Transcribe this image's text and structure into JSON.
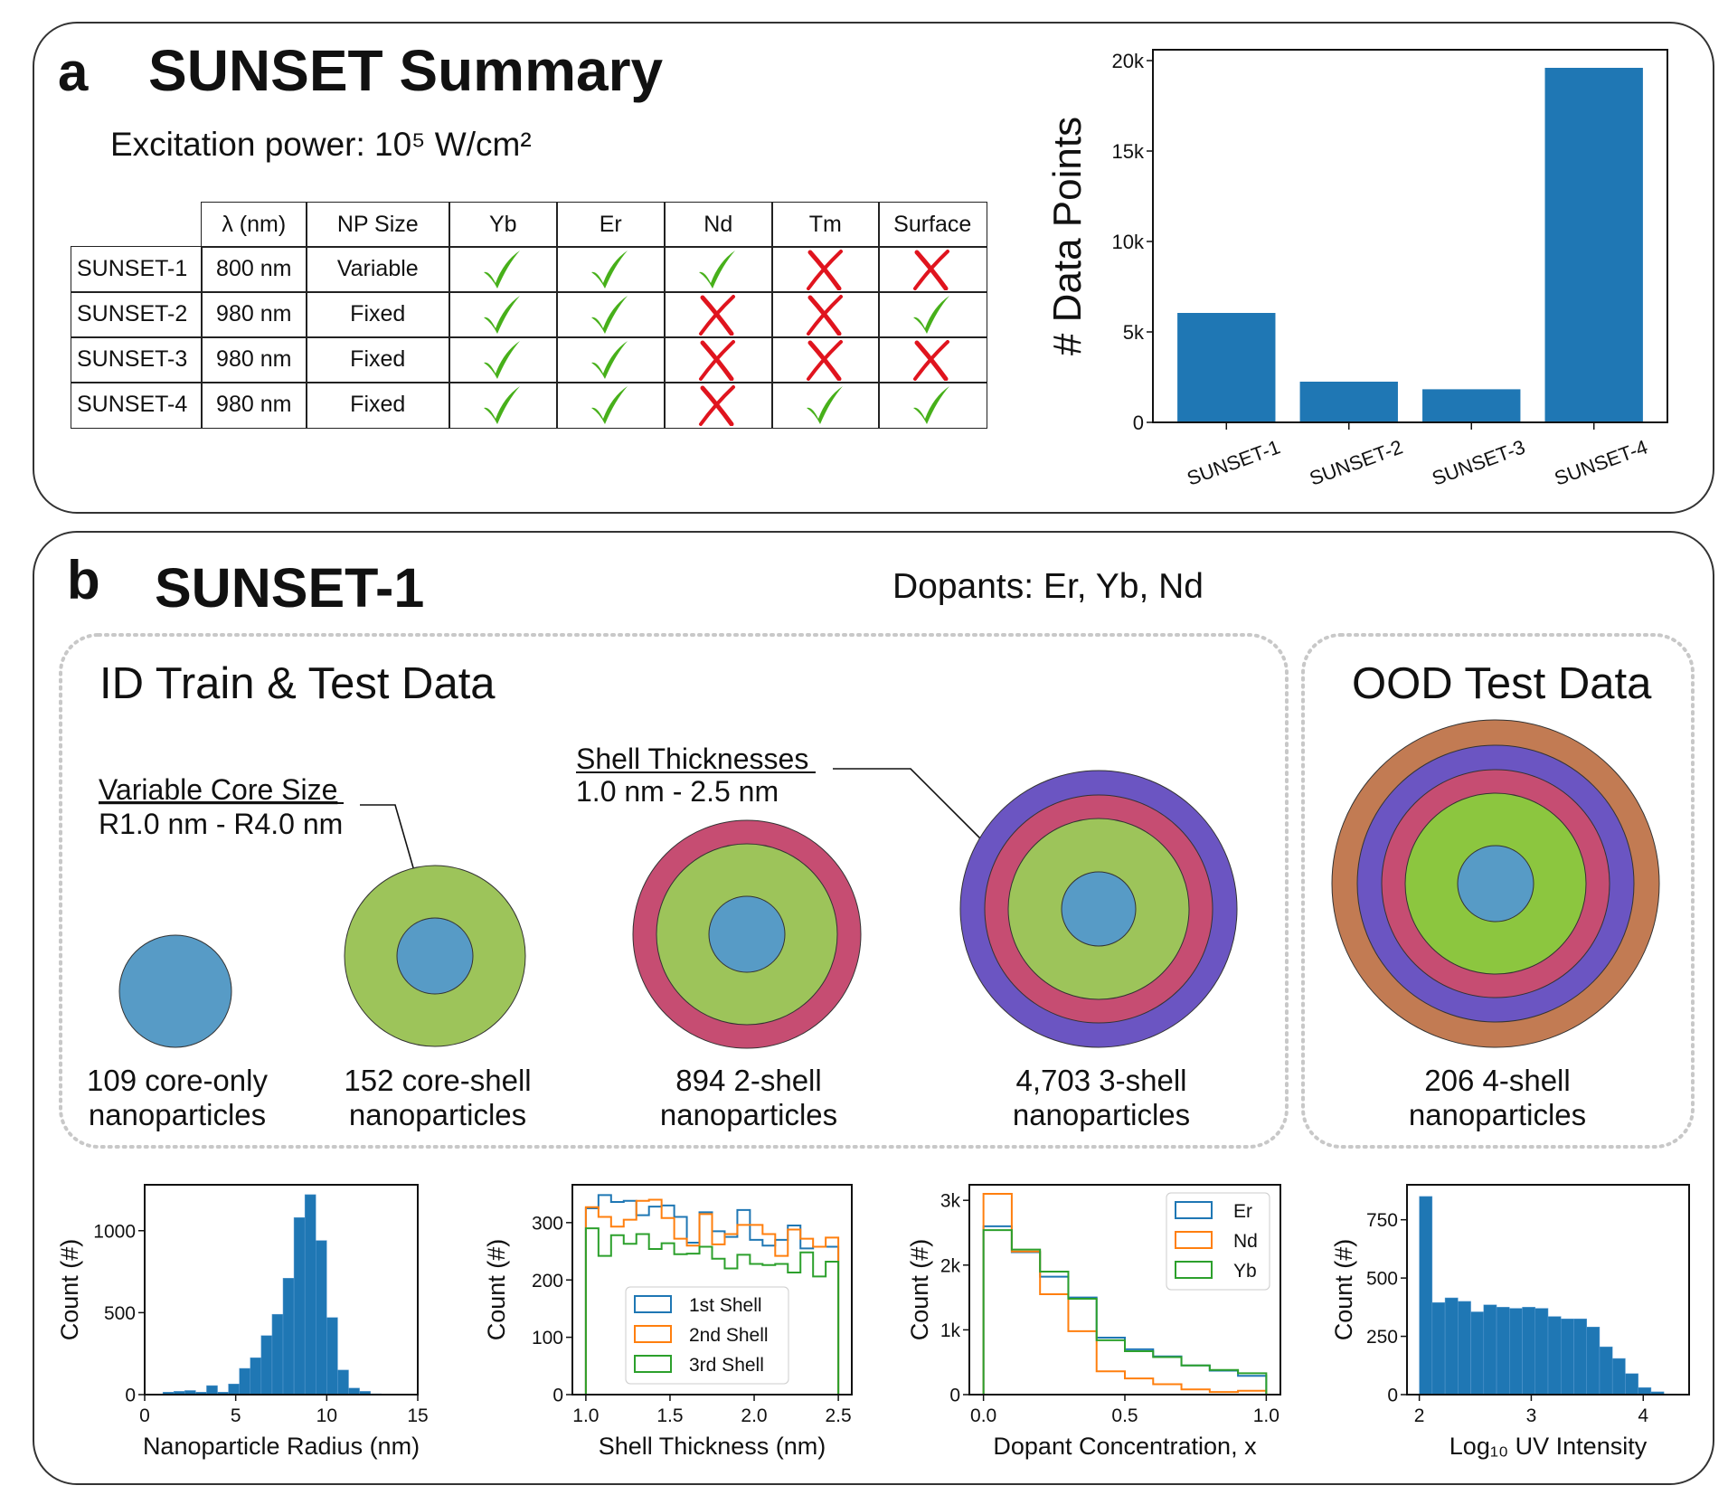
{
  "panel_a": {
    "letter": "a",
    "title": "SUNSET Summary",
    "excitation": "Excitation power: 10⁵ W/cm²",
    "table": {
      "headers": [
        "λ (nm)",
        "NP Size",
        "Yb",
        "Er",
        "Nd",
        "Tm",
        "Surface"
      ],
      "rows": [
        {
          "name": "SUNSET-1",
          "wavelength": "800 nm",
          "size": "Variable",
          "flags": [
            true,
            true,
            true,
            false,
            false
          ]
        },
        {
          "name": "SUNSET-2",
          "wavelength": "980 nm",
          "size": "Fixed",
          "flags": [
            true,
            true,
            false,
            false,
            true
          ]
        },
        {
          "name": "SUNSET-3",
          "wavelength": "980 nm",
          "size": "Fixed",
          "flags": [
            true,
            true,
            false,
            false,
            false
          ]
        },
        {
          "name": "SUNSET-4",
          "wavelength": "980 nm",
          "size": "Fixed",
          "flags": [
            true,
            true,
            false,
            true,
            true
          ]
        }
      ],
      "check_color": "#47b01a",
      "cross_color": "#e0141e"
    }
  },
  "panel_b": {
    "letter": "b",
    "title": "SUNSET-1",
    "dopants": "Dopants: Er, Yb, Nd",
    "id_box_title": "ID Train & Test Data",
    "ood_box_title": "OOD Test Data",
    "annotation_core": {
      "title": "Variable Core Size",
      "range": "R1.0 nm - R4.0 nm"
    },
    "annotation_shell": {
      "title": "Shell Thicknesses",
      "range": "1.0 nm - 2.5 nm"
    },
    "particles": [
      {
        "line1": "109 core-only",
        "line2": "nanoparticles"
      },
      {
        "line1": "152 core-shell",
        "line2": "nanoparticles"
      },
      {
        "line1": "894 2-shell",
        "line2": "nanoparticles"
      },
      {
        "line1": "4,703 3-shell",
        "line2": "nanoparticles"
      },
      {
        "line1": "206 4-shell",
        "line2": "nanoparticles"
      }
    ],
    "layer_colors": {
      "core": "#579bc6",
      "shell1": "#9dc45a",
      "shell1_ood": "#8cc63f",
      "shell2": "#c64d72",
      "shell3": "#6b55c2",
      "shell4": "#c27b53"
    }
  },
  "chart_data": [
    {
      "type": "bar",
      "categories": [
        "SUNSET-1",
        "SUNSET-2",
        "SUNSET-3",
        "SUNSET-4"
      ],
      "values": [
        6050,
        2250,
        1830,
        19600
      ],
      "ylabel": "# Data Points",
      "ylim": [
        0,
        20600
      ],
      "yticks": [
        0,
        5000,
        10000,
        15000,
        20000
      ],
      "yticklabels": [
        "0",
        "5k",
        "10k",
        "15k",
        "20k"
      ],
      "color": "#1f77b4",
      "grid": false
    },
    {
      "type": "bar",
      "histogram": true,
      "xlabel": "Nanoparticle Radius (nm)",
      "ylabel": "Count (#)",
      "bin_start": 1.0,
      "bin_width": 0.6,
      "values": [
        15,
        20,
        25,
        15,
        55,
        15,
        65,
        160,
        225,
        360,
        490,
        710,
        1080,
        1220,
        940,
        470,
        150,
        40,
        20,
        5
      ],
      "xlim": [
        0,
        15
      ],
      "ylim": [
        0,
        1280
      ],
      "xticks": [
        0,
        5,
        10,
        15
      ],
      "xticklabels": [
        "0",
        "5",
        "10",
        "15"
      ],
      "yticks": [
        0,
        500,
        1000
      ],
      "yticklabels": [
        "0",
        "500",
        "1000"
      ],
      "color": "#1f77b4",
      "grid": false
    },
    {
      "type": "line",
      "histogram": "step",
      "xlabel": "Shell Thickness (nm)",
      "ylabel": "Count (#)",
      "bin_start": 1.0,
      "bin_width": 0.075,
      "series": [
        {
          "name": "1st Shell",
          "color": "#1f77b4",
          "values": [
            325,
            348,
            336,
            338,
            313,
            328,
            330,
            310,
            265,
            318,
            285,
            275,
            322,
            270,
            260,
            270,
            295,
            255,
            258,
            258
          ]
        },
        {
          "name": "2nd Shell",
          "color": "#ff7f0e",
          "values": [
            327,
            310,
            293,
            305,
            338,
            340,
            308,
            272,
            260,
            315,
            262,
            280,
            296,
            296,
            280,
            242,
            288,
            272,
            258,
            274
          ]
        },
        {
          "name": "3rd Shell",
          "color": "#2ca02c",
          "values": [
            290,
            242,
            278,
            263,
            280,
            254,
            264,
            245,
            246,
            258,
            237,
            220,
            244,
            228,
            226,
            228,
            213,
            248,
            206,
            232
          ]
        }
      ],
      "xlim": [
        0.92,
        2.58
      ],
      "ylim": [
        0,
        366
      ],
      "xticks": [
        1.0,
        1.5,
        2.0,
        2.5
      ],
      "xticklabels": [
        "1.0",
        "1.5",
        "2.0",
        "2.5"
      ],
      "yticks": [
        0,
        100,
        200,
        300
      ],
      "yticklabels": [
        "0",
        "100",
        "200",
        "300"
      ],
      "legend": "lower-center",
      "grid": false
    },
    {
      "type": "line",
      "histogram": "step",
      "xlabel": "Dopant Concentration, x",
      "ylabel": "Count (#)",
      "bin_start": 0.0,
      "bin_width": 0.1,
      "series": [
        {
          "name": "Er",
          "color": "#1f77b4",
          "values": [
            2600,
            2200,
            1820,
            1500,
            880,
            700,
            590,
            450,
            370,
            290
          ]
        },
        {
          "name": "Nd",
          "color": "#ff7f0e",
          "values": [
            3100,
            2210,
            1550,
            980,
            360,
            250,
            160,
            80,
            40,
            60
          ]
        },
        {
          "name": "Yb",
          "color": "#2ca02c",
          "values": [
            2540,
            2240,
            1900,
            1480,
            840,
            670,
            580,
            450,
            380,
            330
          ]
        }
      ],
      "xlim": [
        -0.05,
        1.05
      ],
      "ylim": [
        0,
        3240
      ],
      "xticks": [
        0.0,
        0.5,
        1.0
      ],
      "xticklabels": [
        "0.0",
        "0.5",
        "1.0"
      ],
      "yticks": [
        0,
        1000,
        2000,
        3000
      ],
      "yticklabels": [
        "0",
        "1k",
        "2k",
        "3k"
      ],
      "legend": "upper-right",
      "grid": false
    },
    {
      "type": "bar",
      "histogram": true,
      "xlabel": "Log₁₀ UV Intensity",
      "ylabel": "Count (#)",
      "bin_start": 2.0,
      "bin_width": 0.115,
      "values": [
        850,
        395,
        415,
        400,
        355,
        385,
        375,
        370,
        375,
        370,
        335,
        325,
        325,
        290,
        205,
        155,
        90,
        30,
        12,
        3
      ],
      "xlim": [
        1.89,
        4.41
      ],
      "ylim": [
        0,
        900
      ],
      "xticks": [
        2,
        3,
        4
      ],
      "xticklabels": [
        "2",
        "3",
        "4"
      ],
      "yticks": [
        0,
        250,
        500,
        750
      ],
      "yticklabels": [
        "0",
        "250",
        "500",
        "750"
      ],
      "color": "#1f77b4",
      "grid": false
    }
  ]
}
